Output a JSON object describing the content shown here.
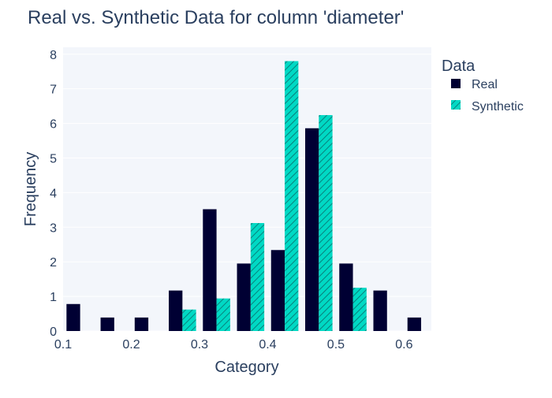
{
  "chart_data": {
    "type": "bar",
    "title": "Real vs. Synthetic Data for column 'diameter'",
    "xlabel": "Category",
    "ylabel": "Frequency",
    "xlim": [
      0.1,
      0.64
    ],
    "ylim": [
      0,
      8.2
    ],
    "x_ticks": [
      "0.1",
      "0.2",
      "0.3",
      "0.4",
      "0.5",
      "0.6"
    ],
    "y_ticks": [
      "0",
      "1",
      "2",
      "3",
      "4",
      "5",
      "6",
      "7",
      "8"
    ],
    "grid": true,
    "legend": {
      "title": "Data",
      "position": "right"
    },
    "bin_centers": [
      0.125,
      0.175,
      0.225,
      0.275,
      0.325,
      0.375,
      0.425,
      0.475,
      0.525,
      0.575,
      0.625
    ],
    "bin_width": 0.05,
    "series": [
      {
        "name": "Real",
        "color": "#000033",
        "pattern": "solid",
        "values": [
          0.78,
          0.39,
          0.39,
          1.17,
          3.52,
          1.95,
          2.34,
          5.86,
          1.95,
          1.17,
          0.39
        ]
      },
      {
        "name": "Synthetic",
        "color": "#00D9C4",
        "pattern": "diagonal-hatch",
        "values": [
          0,
          0,
          0,
          0.62,
          0.94,
          3.12,
          7.8,
          6.24,
          1.25,
          0,
          0
        ]
      }
    ]
  }
}
